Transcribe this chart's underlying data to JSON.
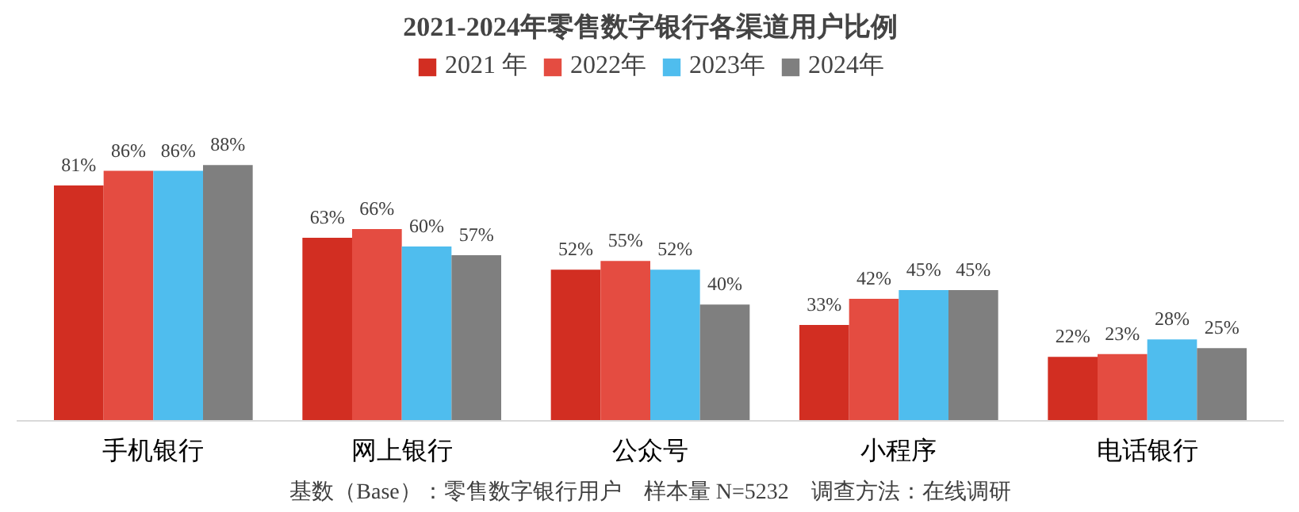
{
  "chart_data": {
    "type": "bar",
    "title": "2021-2024年零售数字银行各渠道用户比例",
    "categories": [
      "手机银行",
      "网上银行",
      "公众号",
      "小程序",
      "电话银行"
    ],
    "series": [
      {
        "name": "2021 年",
        "color": "#d22e22",
        "values": [
          81,
          63,
          52,
          33,
          22
        ],
        "value_labels": [
          "81%",
          "63%",
          "52%",
          "33%",
          "22%"
        ]
      },
      {
        "name": "2022年",
        "color": "#e44c41",
        "values": [
          86,
          66,
          55,
          42,
          23
        ],
        "value_labels": [
          "86%",
          "66%",
          "55%",
          "42%",
          "23%"
        ]
      },
      {
        "name": "2023年",
        "color": "#4fbdee",
        "values": [
          86,
          60,
          52,
          45,
          28
        ],
        "value_labels": [
          "86%",
          "60%",
          "52%",
          "45%",
          "28%"
        ]
      },
      {
        "name": "2024年",
        "color": "#7f7f7f",
        "values": [
          88,
          57,
          40,
          45,
          25
        ],
        "value_labels": [
          "88%",
          "57%",
          "40%",
          "45%",
          "25%"
        ]
      }
    ],
    "legend": "top",
    "grid": false,
    "annotations": [
      "基数（Base）：零售数字银行用户　样本量 N=5232　调查方法：在线调研"
    ]
  }
}
